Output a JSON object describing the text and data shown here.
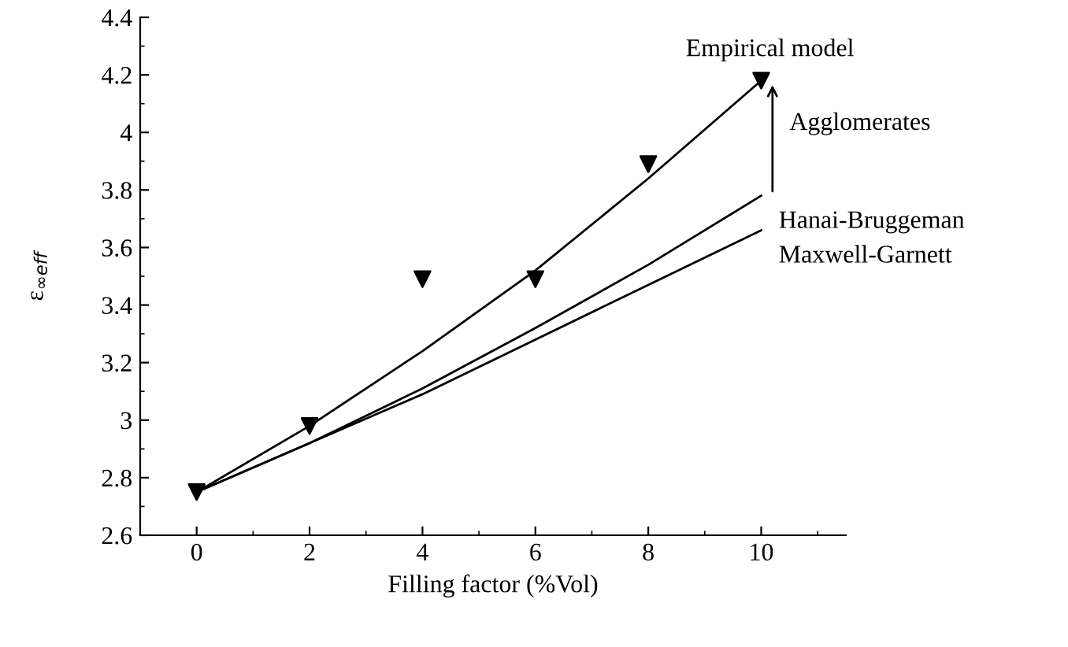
{
  "chart_data": {
    "type": "line",
    "xlabel": "Filling factor (%Vol)",
    "ylabel": "ε$_{∞eff}$",
    "x": [
      0,
      2,
      4,
      6,
      8,
      10
    ],
    "series": [
      {
        "name": "Empirical model",
        "color": "#000000",
        "values": [
          2.75,
          2.98,
          3.24,
          3.52,
          3.84,
          4.18
        ]
      },
      {
        "type": "scatter",
        "marker": "triangle",
        "color": "#000000",
        "values": [
          2.75,
          2.98,
          3.49,
          3.49,
          3.89,
          4.18
        ]
      },
      {
        "name": "Hanai-Bruggeman",
        "color": "#000000",
        "values": [
          2.75,
          2.92,
          3.11,
          3.32,
          3.54,
          3.78
        ]
      },
      {
        "name": "Maxwell-Garnett",
        "color": "#000000",
        "values": [
          2.75,
          2.92,
          3.09,
          3.28,
          3.47,
          3.66
        ]
      }
    ],
    "annotations": [
      {
        "text": "Agglomerates",
        "x": 10.2,
        "y": 4.18
      }
    ],
    "xlim": [
      -1,
      11.5
    ],
    "ylim": [
      2.6,
      4.4
    ],
    "xticks": [
      {
        "value": -1,
        "label": null
      },
      0,
      {
        "value": 1,
        "label": null
      },
      2,
      {
        "value": 3,
        "label": null
      },
      4,
      {
        "value": 5,
        "label": null
      },
      6,
      {
        "value": 7,
        "label": null
      },
      8,
      {
        "value": 9,
        "label": null
      },
      10,
      {
        "value": 11,
        "label": null
      }
    ],
    "yticks": [
      2.6,
      {
        "value": 2.7,
        "label": null
      },
      2.8,
      {
        "value": 2.9,
        "label": null
      },
      3,
      {
        "value": 3.1,
        "label": null
      },
      3.2,
      {
        "value": 3.3,
        "label": null
      },
      3.4,
      {
        "value": 3.5,
        "label": null
      },
      3.6,
      {
        "value": 3.7,
        "label": null
      },
      3.8,
      {
        "value": 3.9,
        "label": null
      },
      4,
      {
        "value": 4.1,
        "label": null
      },
      4.2,
      {
        "value": 4.3,
        "label": null
      },
      4.4
    ],
    "grid": false,
    "legend": false
  }
}
